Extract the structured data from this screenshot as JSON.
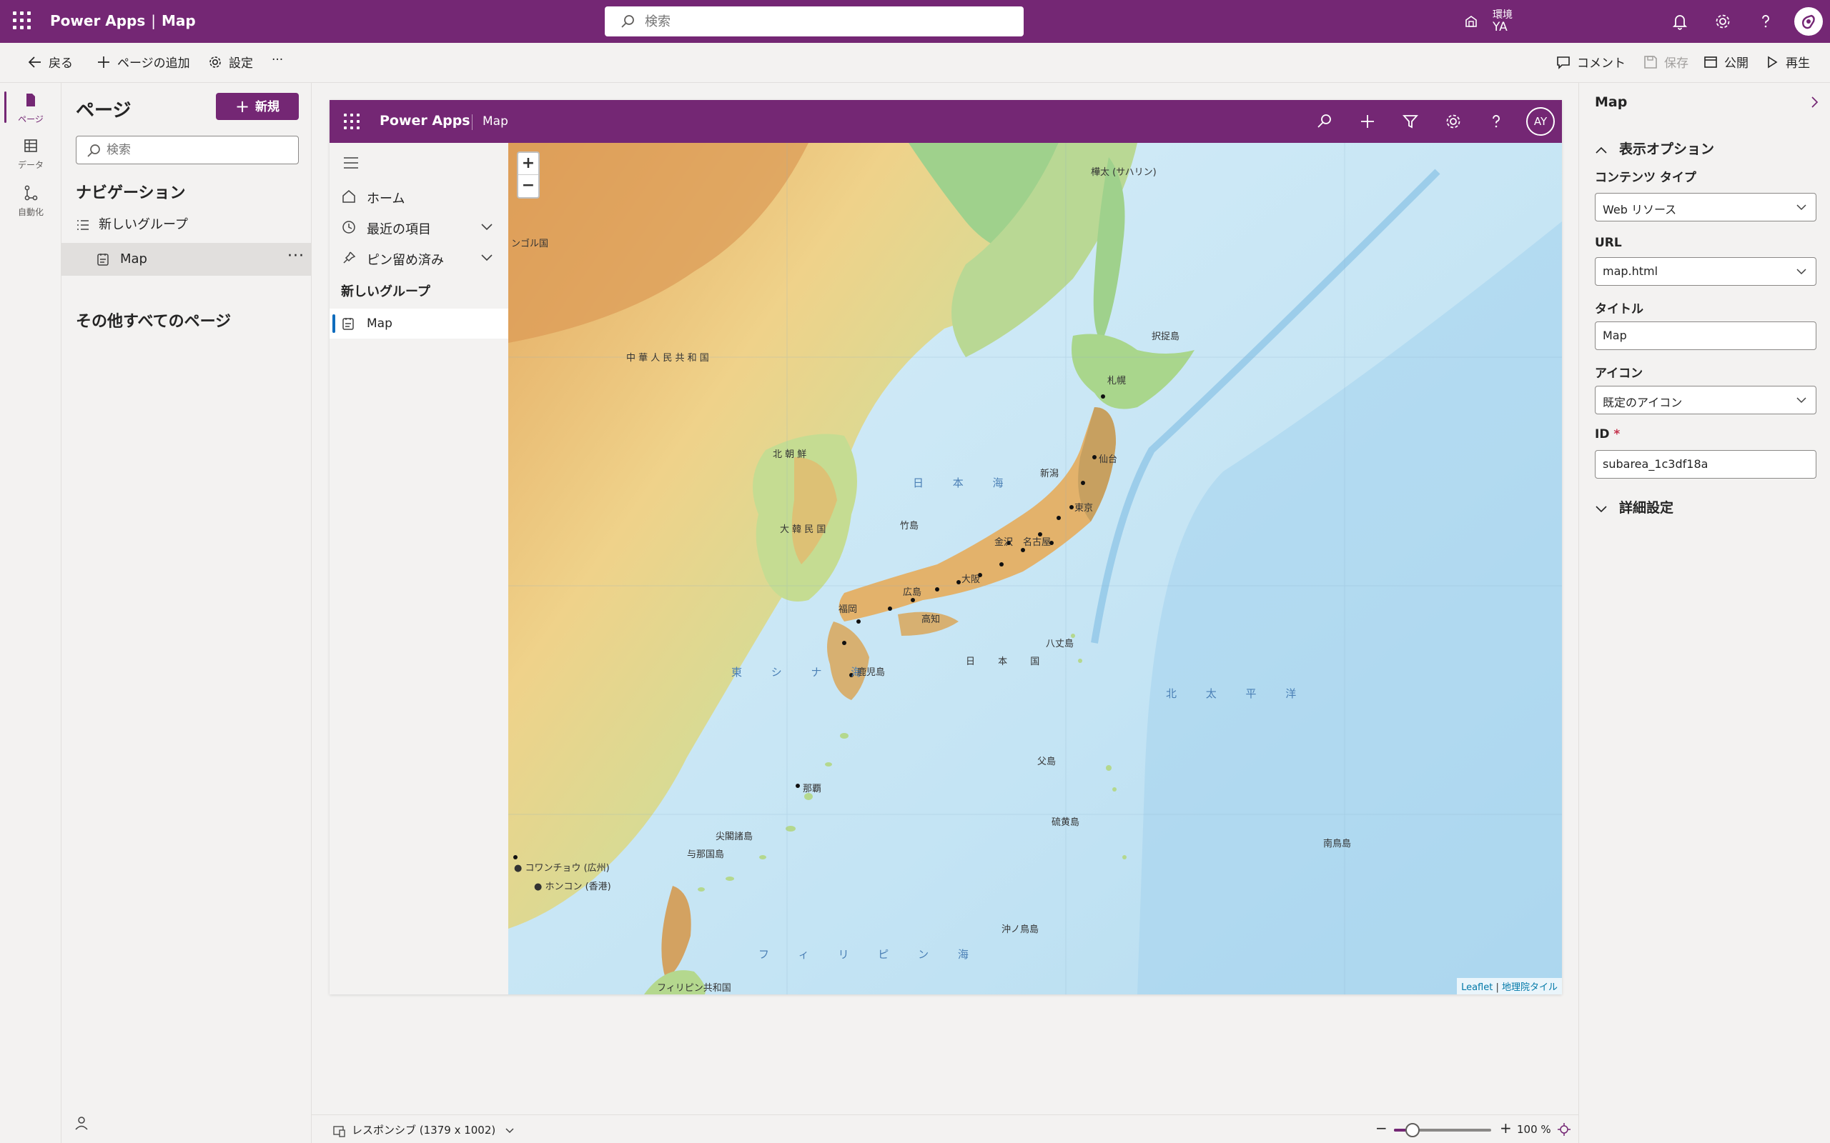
{
  "header": {
    "app_name": "Power Apps",
    "separator": "|",
    "page_name": "Map",
    "search_placeholder": "検索",
    "env_label": "環境",
    "env_name": "YA"
  },
  "commands": {
    "back": "戻る",
    "add_page": "ページの追加",
    "settings": "設定",
    "more": "···",
    "comments": "コメント",
    "save": "保存",
    "publish": "公開",
    "play": "再生"
  },
  "rail": {
    "pages": "ページ",
    "data": "データ",
    "automate": "自動化"
  },
  "pages_panel": {
    "title": "ページ",
    "new_button": "新規",
    "search_placeholder": "検索",
    "navigation_heading": "ナビゲーション",
    "group_name": "新しいグループ",
    "page_item": "Map",
    "page_item_more": "···",
    "other_pages_heading": "その他すべてのページ"
  },
  "preview": {
    "app_name": "Power Apps",
    "page_name": "Map",
    "avatar_initials": "AY",
    "nav": {
      "home": "ホーム",
      "recent": "最近の項目",
      "pinned": "ピン留め済み",
      "group": "新しいグループ",
      "map_item": "Map"
    }
  },
  "map": {
    "zoom_in": "+",
    "zoom_out": "−",
    "attribution_leaflet": "Leaflet",
    "attribution_sep": " | ",
    "attribution_tiles": "地理院タイル",
    "labels": {
      "mongolia": "ンゴル国",
      "china": "中 華 人 民 共 和 国",
      "north_korea": "北 朝 鮮",
      "south_korea": "大 韓 民 国",
      "sea_of_japan": "日 本 海",
      "east_china_sea": "東 シ ナ 海",
      "pacific": "北 太 平 洋",
      "philippine_sea": "フ ィ リ ピ ン 海",
      "japan": "日 本 国",
      "sakhalin": "樺太 (サハリン)",
      "sapporo": "札幌",
      "sendai": "仙台",
      "tokyo": "東京",
      "osaka": "大阪",
      "nagoya": "名古屋",
      "fukuoka": "福岡",
      "kagoshima": "鹿児島",
      "naha": "那覇",
      "guangzhou": "● コワンチョウ (広州)",
      "hongkong": "● ホンコン (香港)",
      "philippines": "フィリピン共和国",
      "kuril": "択捉島",
      "okinotori": "沖ノ鳥島",
      "minamitori": "南鳥島",
      "ogasawara": "父島",
      "iwo": "硫黄島",
      "hachijo": "八丈島",
      "takeshima": "竹島",
      "senkaku": "尖閣諸島",
      "yonaguni": "与那国島",
      "niigata": "新潟",
      "kanazawa": "金沢",
      "hiroshima": "広島",
      "kochi": "高知"
    }
  },
  "status": {
    "responsive": "レスポンシブ (1379 x 1002)",
    "zoom_minus": "−",
    "zoom_plus": "+",
    "zoom_value": "100 %",
    "zoom_fraction": 0.19
  },
  "properties": {
    "title": "Map",
    "display_options": "表示オプション",
    "content_type_label": "コンテンツ タイプ",
    "content_type_value": "Web リソース",
    "url_label": "URL",
    "url_value": "map.html",
    "title_label": "タイトル",
    "title_value": "Map",
    "icon_label": "アイコン",
    "icon_value": "既定のアイコン",
    "id_label": "ID",
    "id_required": "*",
    "id_value": "subarea_1c3df18a",
    "advanced": "詳細設定"
  },
  "colors": {
    "brand": "#742774",
    "accent_blue": "#0f6cbd"
  }
}
